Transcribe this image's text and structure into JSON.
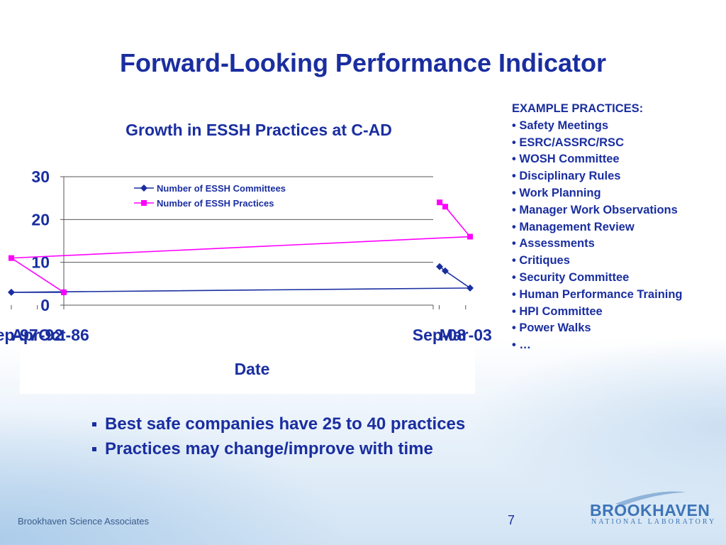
{
  "slide": {
    "title": "Forward-Looking Performance Indicator",
    "page_number": "7",
    "footer_left": "Brookhaven Science Associates",
    "logo": {
      "name": "BROOKHAVEN",
      "subtitle": "NATIONAL LABORATORY",
      "icon": "swoosh-icon"
    }
  },
  "examples": {
    "heading": "EXAMPLE PRACTICES:",
    "items": [
      "Safety Meetings",
      "ESRC/ASSRC/RSC",
      "WOSH Committee",
      "Disciplinary Rules",
      "Work Planning",
      "Manager Work Observations",
      "Management Review",
      "Assessments",
      "Critiques",
      "Security Committee",
      "Human Performance Training",
      "HPI Committee",
      "Power Walks",
      "…"
    ]
  },
  "bullets": [
    "Best safe companies have 25 to 40 practices",
    "Practices may change/improve with time"
  ],
  "colors": {
    "title": "#1a2ea0",
    "committees": "#1a2ea0",
    "practices": "#ff00ff"
  },
  "chart_data": {
    "type": "line",
    "title": "Growth in ESSH Practices at C-AD",
    "xlabel": "Date",
    "ylabel": "",
    "x_ticks": [
      "Oct-86",
      "Apr-92",
      "Sep-97",
      "Mar-03",
      "Sep-08"
    ],
    "xlim": [
      "Oct-86",
      "Dec-09"
    ],
    "ylim": [
      0,
      30
    ],
    "y_ticks": [
      0,
      10,
      20,
      30
    ],
    "grid": true,
    "legend": "top-center",
    "series": [
      {
        "name": "Number of ESSH Committees",
        "color": "#1a2ea0",
        "marker": "diamond",
        "points": [
          [
            "Oct-86",
            3
          ],
          [
            "Sep-97",
            3
          ],
          [
            "Apr-02",
            4
          ],
          [
            "Jun-07",
            8
          ],
          [
            "Aug-08",
            9
          ]
        ]
      },
      {
        "name": "Number of ESSH Practices",
        "color": "#ff00ff",
        "marker": "square",
        "points": [
          [
            "Oct-86",
            3
          ],
          [
            "Sep-97",
            11
          ],
          [
            "Apr-02",
            16
          ],
          [
            "Jun-07",
            23
          ],
          [
            "Aug-08",
            24
          ]
        ]
      }
    ]
  }
}
